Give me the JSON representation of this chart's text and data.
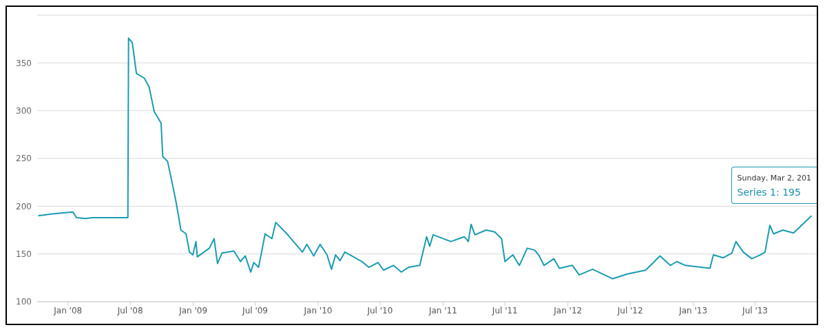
{
  "chart_data": {
    "type": "line",
    "grid": "y",
    "legend": false,
    "marker": "none",
    "line_style": "solid",
    "xlim": [
      "2007-10-03",
      "2013-12-28"
    ],
    "xticks": [
      {
        "value": "2008-01",
        "label": "Jan '08"
      },
      {
        "value": "2008-07",
        "label": "Jul '08"
      },
      {
        "value": "2009-01",
        "label": "Jan '09"
      },
      {
        "value": "2009-07",
        "label": "Jul '09"
      },
      {
        "value": "2010-01",
        "label": "Jan '10"
      },
      {
        "value": "2010-07",
        "label": "Jul '10"
      },
      {
        "value": "2011-01",
        "label": "Jan '11"
      },
      {
        "value": "2011-07",
        "label": "Jul '11"
      },
      {
        "value": "2012-01",
        "label": "Jan '12"
      },
      {
        "value": "2012-07",
        "label": "Jul '12"
      },
      {
        "value": "2013-01",
        "label": "Jan '13"
      },
      {
        "value": "2013-07",
        "label": "Jul '13"
      }
    ],
    "ylim": [
      100,
      400
    ],
    "yticks": [
      100,
      150,
      200,
      250,
      300,
      350
    ],
    "annotations": [
      "Sunday, Mar 2, 201",
      "Series 1: 195"
    ],
    "x": [
      "2007-10-06",
      "2007-11-17",
      "2008-01-15",
      "2008-01-26",
      "2008-02-22",
      "2008-03-13",
      "2008-06-24",
      "2008-06-26",
      "2008-07-07",
      "2008-07-19",
      "2008-08-11",
      "2008-08-25",
      "2008-09-09",
      "2008-09-29",
      "2008-10-04",
      "2008-10-18",
      "2008-11-03",
      "2008-11-12",
      "2008-11-26",
      "2008-12-11",
      "2008-12-21",
      "2008-12-31",
      "2009-01-09",
      "2009-01-13",
      "2009-02-17",
      "2009-03-03",
      "2009-03-13",
      "2009-03-26",
      "2009-04-30",
      "2009-05-19",
      "2009-06-02",
      "2009-06-18",
      "2009-06-27",
      "2009-07-11",
      "2009-07-30",
      "2009-08-19",
      "2009-08-30",
      "2009-10-02",
      "2009-11-16",
      "2009-11-29",
      "2009-12-19",
      "2010-01-07",
      "2010-01-27",
      "2010-02-09",
      "2010-02-21",
      "2010-03-06",
      "2010-03-20",
      "2010-05-09",
      "2010-05-29",
      "2010-06-25",
      "2010-07-11",
      "2010-08-09",
      "2010-09-01",
      "2010-09-22",
      "2010-10-25",
      "2010-11-14",
      "2010-11-23",
      "2010-12-03",
      "2011-01-24",
      "2011-03-04",
      "2011-03-16",
      "2011-03-24",
      "2011-04-04",
      "2011-05-07",
      "2011-06-01",
      "2011-06-21",
      "2011-07-01",
      "2011-07-24",
      "2011-08-12",
      "2011-09-04",
      "2011-09-26",
      "2011-10-09",
      "2011-10-23",
      "2011-11-21",
      "2011-12-07",
      "2012-01-14",
      "2012-02-03",
      "2012-03-13",
      "2012-05-10",
      "2012-06-23",
      "2012-08-15",
      "2012-09-26",
      "2012-10-26",
      "2012-11-14",
      "2012-12-09",
      "2013-02-19",
      "2013-03-01",
      "2013-03-30",
      "2013-04-24",
      "2013-05-06",
      "2013-05-27",
      "2013-06-21",
      "2013-07-16",
      "2013-07-30",
      "2013-08-13",
      "2013-08-24",
      "2013-09-20",
      "2013-10-21",
      "2013-11-14",
      "2013-12-13"
    ],
    "series": [
      {
        "color": "#1a9bb0",
        "values": [
          190,
          192,
          194,
          188,
          187,
          188,
          188,
          376,
          371,
          339,
          334,
          325,
          299,
          287,
          252,
          247,
          220,
          204,
          175,
          171,
          152,
          149,
          163,
          147,
          156,
          166,
          140,
          151,
          153,
          142,
          148,
          131,
          141,
          136,
          171,
          166,
          183,
          171,
          152,
          160,
          148,
          160,
          149,
          134,
          149,
          143,
          152,
          142,
          136,
          141,
          133,
          138,
          131,
          136,
          138,
          168,
          158,
          170,
          163,
          168,
          163,
          181,
          170,
          175,
          173,
          166,
          142,
          149,
          138,
          156,
          154,
          148,
          138,
          145,
          135,
          138,
          128,
          134,
          124,
          129,
          133,
          148,
          138,
          142,
          138,
          135,
          149,
          146,
          151,
          163,
          152,
          145,
          149,
          152,
          180,
          171,
          175,
          172,
          180,
          190
        ]
      }
    ]
  }
}
